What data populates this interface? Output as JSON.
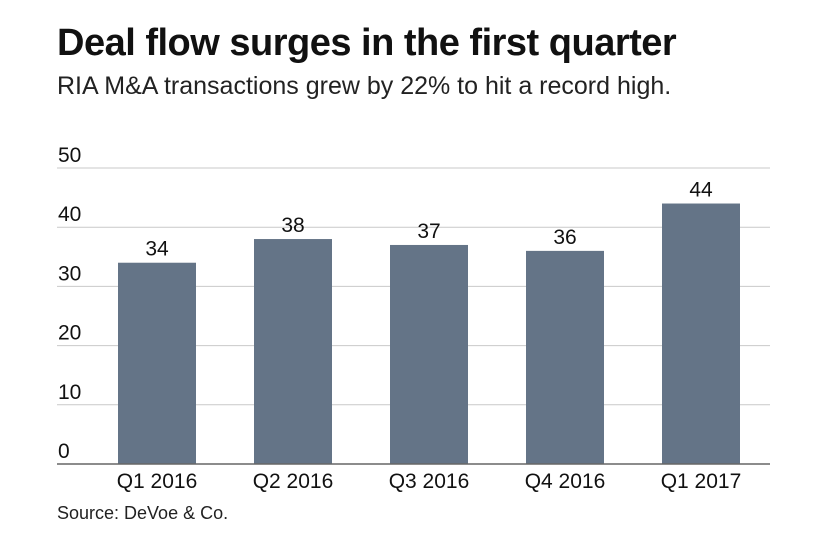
{
  "header": {
    "title": "Deal flow surges in the first quarter",
    "subtitle": "RIA M&A transactions grew by 22% to hit a record high."
  },
  "footer": {
    "source": "Source: DeVoe & Co."
  },
  "colors": {
    "bar": "#647487",
    "grid": "#c9c9c9",
    "axis": "#666666"
  },
  "chart_data": {
    "type": "bar",
    "categories": [
      "Q1 2016",
      "Q2 2016",
      "Q3 2016",
      "Q4 2016",
      "Q1 2017"
    ],
    "values": [
      34,
      38,
      37,
      36,
      44
    ],
    "ylim": [
      0,
      50
    ],
    "yticks": [
      0,
      10,
      20,
      30,
      40,
      50
    ],
    "grid": true,
    "legend": "none",
    "data_labels": true
  }
}
